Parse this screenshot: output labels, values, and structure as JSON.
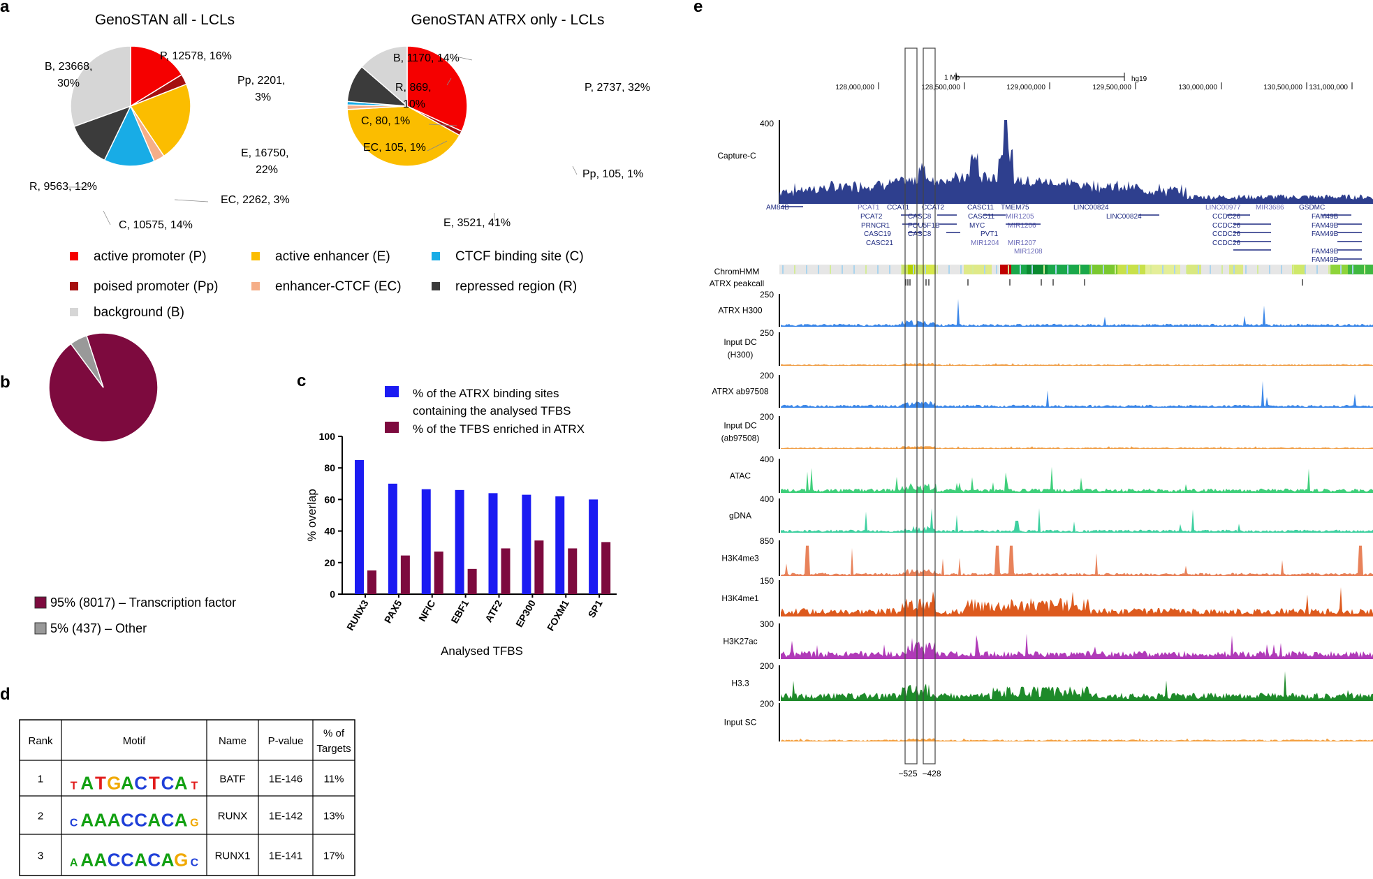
{
  "panels": {
    "a": "a",
    "b": "b",
    "c": "c",
    "d": "d",
    "e": "e"
  },
  "colors": {
    "P": "#f50000",
    "Pp": "#a50f0f",
    "E": "#fbbd00",
    "EC": "#f5ae88",
    "C": "#18ace6",
    "R": "#3b3b3b",
    "B": "#d6d6d6",
    "tf": "#7d0a3e",
    "other": "#999999",
    "blue_bar": "#1b1bf2",
    "maroon_bar": "#7d0a3e"
  },
  "chart_data": [
    {
      "id": "pie-all",
      "type": "pie",
      "title": "GenoSTAN all - LCLs",
      "slices": [
        {
          "key": "P",
          "value": 12578,
          "label1": "P, 12578, 16%"
        },
        {
          "key": "Pp",
          "value": 2201,
          "label1": "Pp, 2201,",
          "label2": "3%"
        },
        {
          "key": "E",
          "value": 16750,
          "label1": "E, 16750,",
          "label2": "22%"
        },
        {
          "key": "EC",
          "value": 2262,
          "label1": "EC, 2262, 3%"
        },
        {
          "key": "C",
          "value": 10575,
          "label1": "C, 10575, 14%"
        },
        {
          "key": "R",
          "value": 9563,
          "label1": "R, 9563, 12%"
        },
        {
          "key": "B",
          "value": 23668,
          "label1": "B, 23668,",
          "label2": "30%"
        }
      ]
    },
    {
      "id": "pie-atrx",
      "type": "pie",
      "title": "GenoSTAN ATRX only - LCLs",
      "slices": [
        {
          "key": "P",
          "value": 2737,
          "label1": "P, 2737, 32%"
        },
        {
          "key": "Pp",
          "value": 105,
          "label1": "Pp, 105, 1%"
        },
        {
          "key": "E",
          "value": 3521,
          "label1": "E, 3521, 41%"
        },
        {
          "key": "EC",
          "value": 105,
          "label1": "EC, 105, 1%"
        },
        {
          "key": "C",
          "value": 80,
          "label1": "C, 80, 1%"
        },
        {
          "key": "R",
          "value": 869,
          "label1": "R, 869,",
          "label2": "10%"
        },
        {
          "key": "B",
          "value": 1170,
          "label1": "B, 1170, 14%"
        }
      ]
    },
    {
      "id": "pie-b",
      "type": "pie",
      "title": "",
      "slices": [
        {
          "key": "tf",
          "value": 8017,
          "label1": "95% (8017) – Transcription factor"
        },
        {
          "key": "other",
          "value": 437,
          "label1": "5% (437) – Other"
        }
      ]
    },
    {
      "id": "bar-c",
      "type": "bar",
      "title": "",
      "categories": [
        "RUNX3",
        "PAX5",
        "NFIC",
        "EBF1",
        "ATF2",
        "EP300",
        "FOXM1",
        "SP1"
      ],
      "series": [
        {
          "name": "% of the ATRX binding sites containing the analysed TFBS",
          "legend1": "% of the ATRX binding sites",
          "legend2": "containing the analysed TFBS",
          "values": [
            85,
            70,
            66.5,
            66,
            64,
            63,
            62,
            60
          ]
        },
        {
          "name": "% of the TFBS enriched in ATRX",
          "legend1": "% of the TFBS enriched in ATRX",
          "values": [
            15,
            24.5,
            27,
            16,
            29,
            34,
            29,
            33
          ]
        }
      ],
      "xlabel": "Analysed TFBS",
      "ylabel": "% overlap",
      "ylim": [
        0,
        100
      ],
      "yticks": [
        "0",
        "20",
        "40",
        "60",
        "80",
        "100"
      ]
    }
  ],
  "legend_a": [
    {
      "key": "P",
      "label": "active promoter (P)"
    },
    {
      "key": "Pp",
      "label": "poised promoter (Pp)"
    },
    {
      "key": "B",
      "label": "background (B)"
    },
    {
      "key": "E",
      "label": "active enhancer (E)"
    },
    {
      "key": "EC",
      "label": "enhancer-CTCF (EC)"
    },
    {
      "key": "C",
      "label": "CTCF binding site (C)"
    },
    {
      "key": "R",
      "label": "repressed region (R)"
    }
  ],
  "table_d": {
    "headers": {
      "rank": "Rank",
      "motif": "Motif",
      "name": "Name",
      "pvalue": "P-value",
      "targets1": "% of",
      "targets2": "Targets"
    },
    "rows": [
      {
        "rank": "1",
        "motif": "TATGACTCAT",
        "name": "BATF",
        "pvalue": "1E-146",
        "targets": "11%"
      },
      {
        "rank": "2",
        "motif": "CAAACCACAG",
        "name": "RUNX",
        "pvalue": "1E-142",
        "targets": "13%"
      },
      {
        "rank": "3",
        "motif": "AAACCACAGC",
        "name": "RUNX1",
        "pvalue": "1E-141",
        "targets": "17%"
      }
    ]
  },
  "browser_e": {
    "scale_label": "1 Mb",
    "assembly": "hg19",
    "positions": [
      "128,000,000",
      "128,500,000",
      "129,000,000",
      "129,500,000",
      "130,000,000",
      "130,500,000",
      "131,000,000"
    ],
    "box_labels": [
      "−525",
      "−428"
    ],
    "capturec": {
      "label": "Capture-C",
      "max": "400"
    },
    "chromhmm_label": "ChromHMM",
    "peakcall_label": "ATRX peakcall",
    "genes": [
      "AM84B",
      "PCAT1",
      "CCAT1",
      "CCAT2",
      "CASC11",
      "TMEM75",
      "LINC00824",
      "LINC00977",
      "MIR3686",
      "GSDMC",
      "PCAT2",
      "CASC8",
      "CASC11",
      "MIR1205",
      "LINC00824",
      "CCDC26",
      "FAM49B",
      "PRNCR1",
      "POU5F1B",
      "MYC",
      "MIR1206",
      "CCDC26",
      "FAM49B",
      "CASC19",
      "CASC8",
      "PVT1",
      "CCDC26",
      "FAM49B",
      "CASC21",
      "MIR1204",
      "MIR1207",
      "CCDC26",
      "MIR1208",
      "FAM49B",
      "FAM49B",
      "FAM49B"
    ],
    "tracks": [
      {
        "label1": "ATRX H300",
        "label2": "",
        "max": "250",
        "color": "#3a86e8"
      },
      {
        "label1": "Input DC",
        "label2": "(H300)",
        "max": "250",
        "color": "#f0a04a"
      },
      {
        "label1": "ATRX ab97508",
        "label2": "",
        "max": "200",
        "color": "#3a86e8"
      },
      {
        "label1": "Input DC",
        "label2": "(ab97508)",
        "max": "200",
        "color": "#f0a04a"
      },
      {
        "label1": "ATAC",
        "label2": "",
        "max": "400",
        "color": "#3ecf7a"
      },
      {
        "label1": "gDNA",
        "label2": "",
        "max": "400",
        "color": "#3ed0a0"
      },
      {
        "label1": "H3K4me3",
        "label2": "",
        "max": "850",
        "color": "#e8825a"
      },
      {
        "label1": "H3K4me1",
        "label2": "",
        "max": "150",
        "color": "#dd5a1e"
      },
      {
        "label1": "H3K27ac",
        "label2": "",
        "max": "300",
        "color": "#b03ab8"
      },
      {
        "label1": "H3.3",
        "label2": "",
        "max": "200",
        "color": "#1e8a2a"
      },
      {
        "label1": "Input SC",
        "label2": "",
        "max": "200",
        "color": "#f4a040"
      }
    ]
  }
}
